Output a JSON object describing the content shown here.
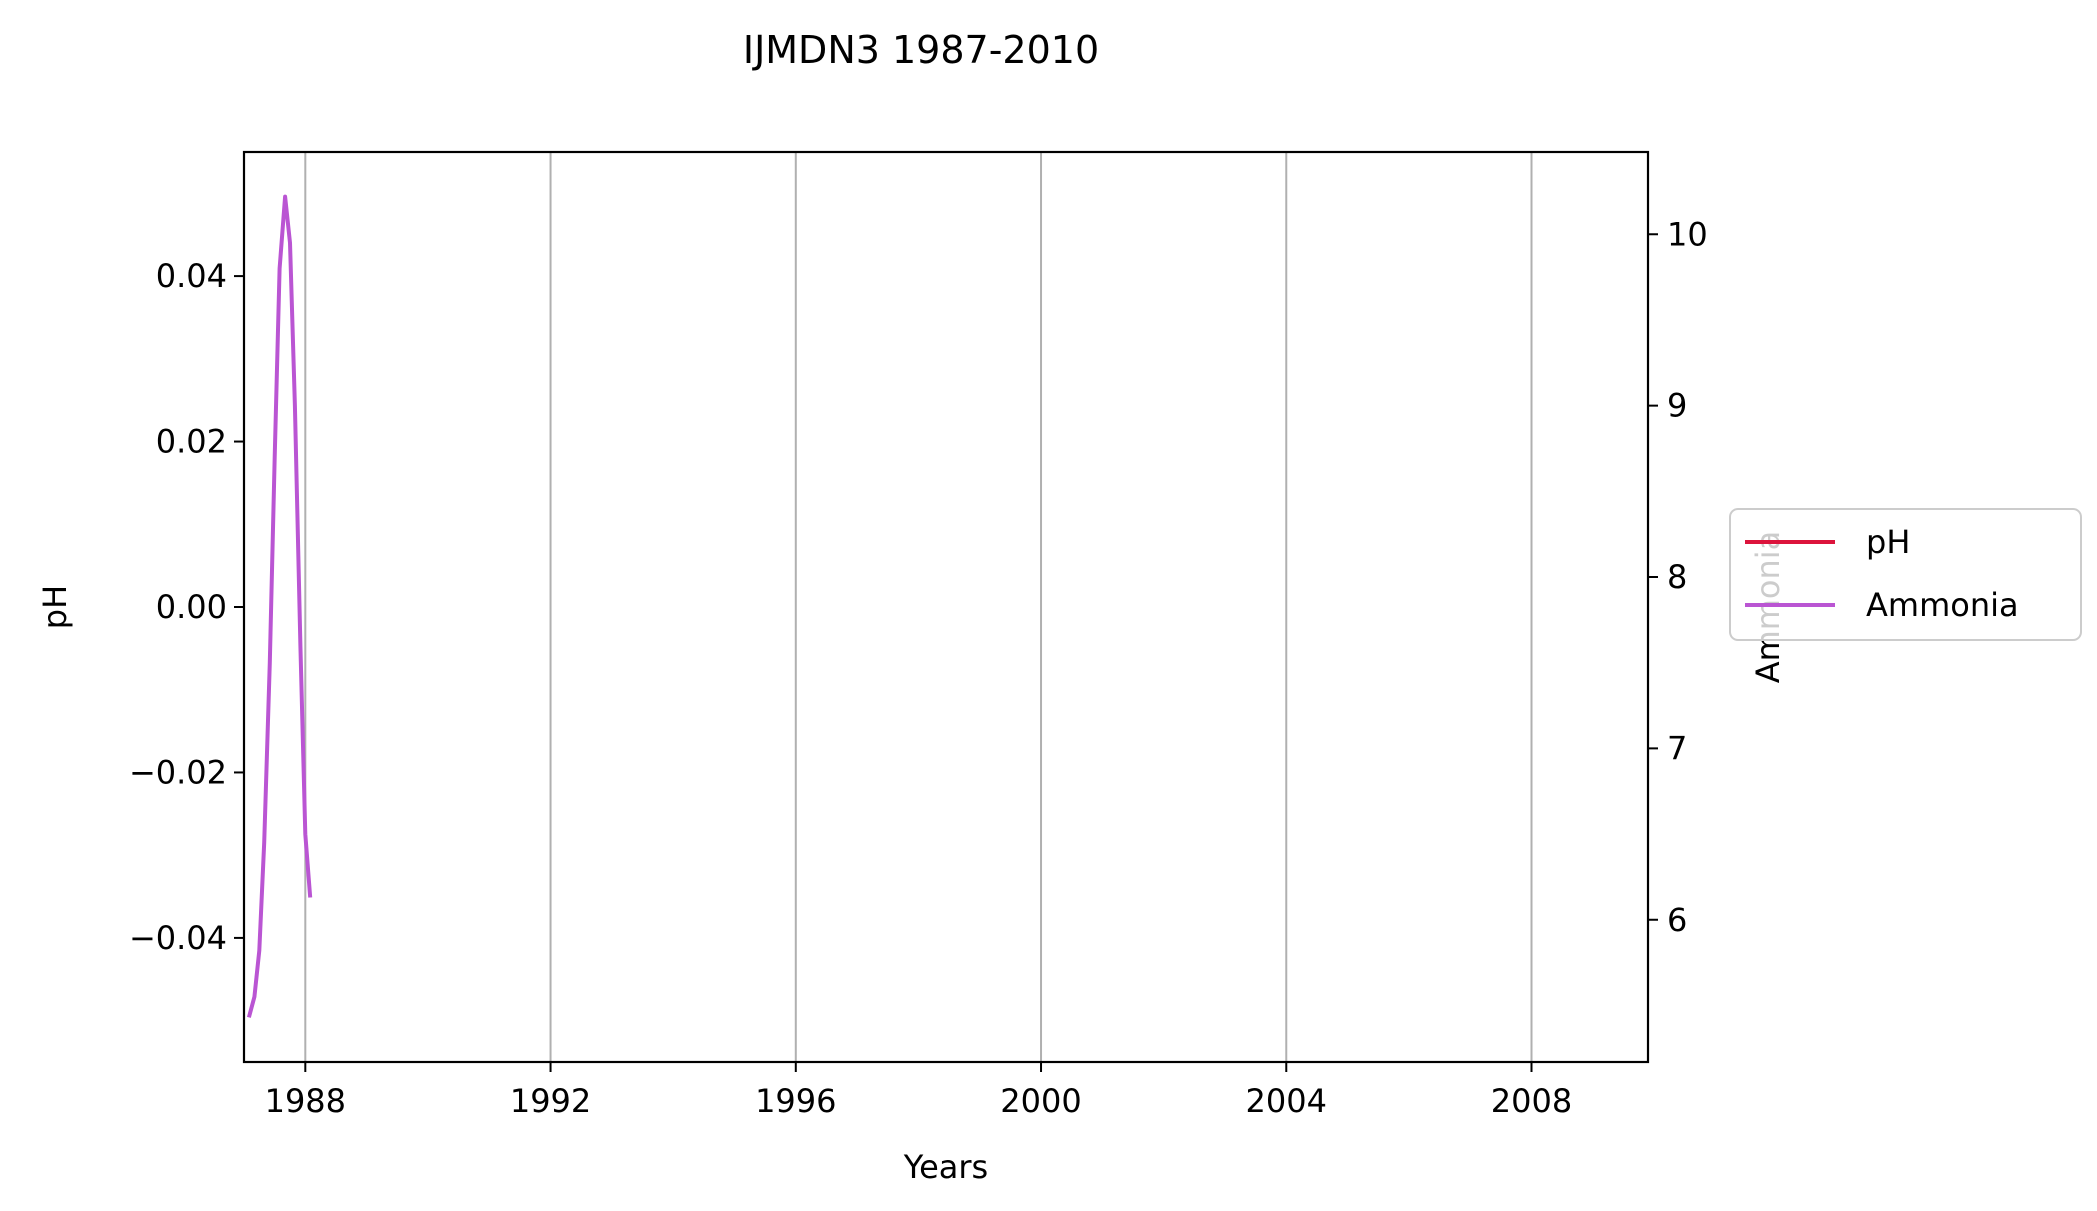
{
  "chart_data": {
    "type": "line",
    "title": "IJMDN3 1987-2010",
    "xlabel": "Years",
    "ylabel_left": "pH",
    "ylabel_right": "Ammonia",
    "xlim": [
      1987.0,
      2009.9
    ],
    "xticks": [
      1988,
      1992,
      1996,
      2000,
      2004,
      2008
    ],
    "y_left_lim": [
      -0.055,
      0.055
    ],
    "y_left_ticks": [
      0.04,
      0.02,
      0.0,
      -0.02,
      -0.04
    ],
    "y_left_tick_labels": [
      "0.04",
      "0.02",
      "0.00",
      "−0.02",
      "−0.04"
    ],
    "y_right_lim": [
      5.17,
      10.48
    ],
    "y_right_ticks": [
      6,
      7,
      8,
      9,
      10
    ],
    "grid": "vertical",
    "legend_position": "right",
    "series": [
      {
        "name": "pH",
        "axis": "left",
        "color": "#dc143c",
        "x": [],
        "y": []
      },
      {
        "name": "Ammonia",
        "axis": "right",
        "color": "#ba55d3",
        "x": [
          1987.08,
          1987.17,
          1987.25,
          1987.33,
          1987.42,
          1987.5,
          1987.58,
          1987.67,
          1987.75,
          1987.83,
          1987.92,
          1988.0,
          1988.08
        ],
        "y": [
          5.43,
          5.55,
          5.82,
          6.45,
          7.5,
          8.7,
          9.8,
          10.22,
          9.95,
          9.0,
          7.6,
          6.5,
          6.13
        ]
      }
    ]
  }
}
